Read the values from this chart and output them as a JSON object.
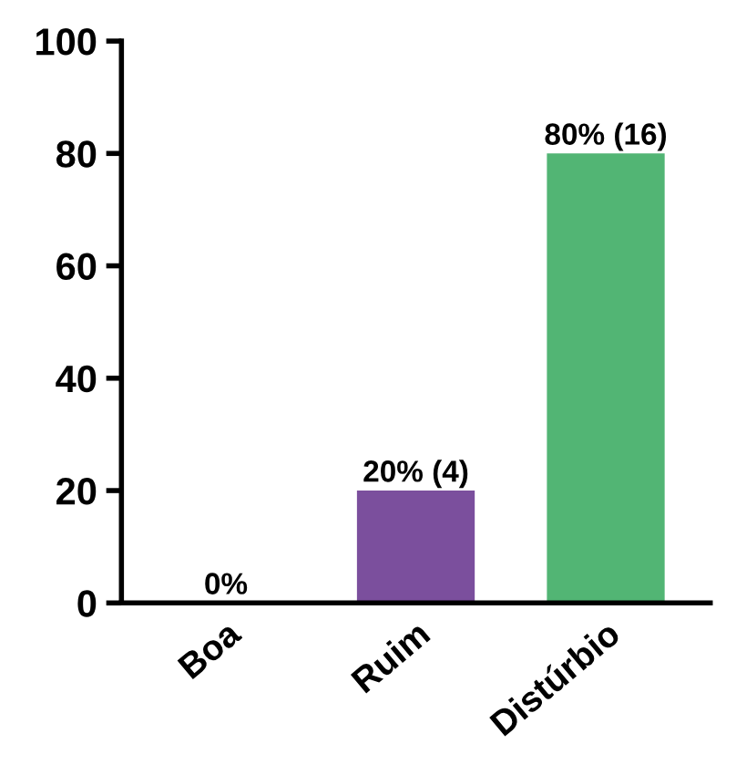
{
  "chart_data": {
    "type": "bar",
    "categories": [
      "Boa",
      "Ruim",
      "Distúrbio"
    ],
    "values": [
      0,
      20,
      80
    ],
    "colors": [
      "#7b4f9d",
      "#7b4f9d",
      "#52b574"
    ],
    "value_labels": [
      "0%",
      "20% (4)",
      "80% (16)"
    ],
    "ylim": [
      0,
      100
    ],
    "yticks": [
      0,
      20,
      40,
      60,
      80,
      100
    ],
    "grid": false,
    "legend": false
  }
}
